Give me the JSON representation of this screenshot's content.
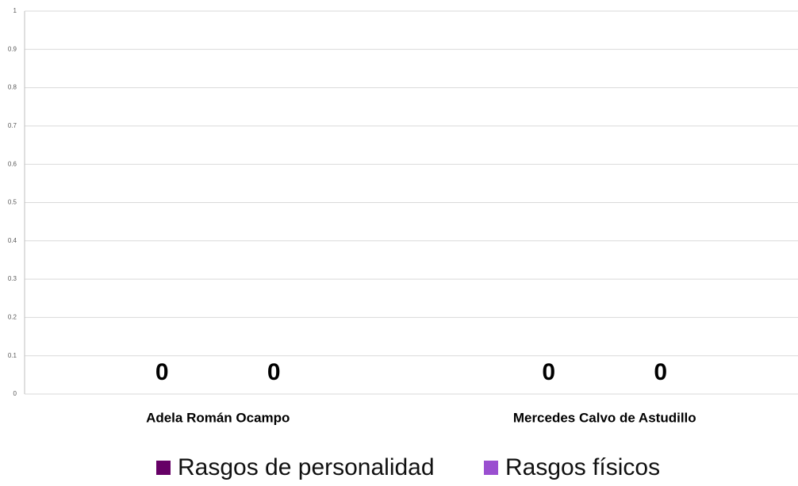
{
  "chart_data": {
    "type": "bar",
    "categories": [
      "Adela Román Ocampo",
      "Mercedes Calvo de Astudillo"
    ],
    "series": [
      {
        "name": "Rasgos de personalidad",
        "color": "#660066",
        "values": [
          0,
          0
        ]
      },
      {
        "name": "Rasgos físicos",
        "color": "#9a4fd0",
        "values": [
          0,
          0
        ]
      }
    ],
    "ylim": [
      0,
      1
    ],
    "yticks": [
      0,
      0.1,
      0.2,
      0.3,
      0.4,
      0.5,
      0.6,
      0.7,
      0.8,
      0.9,
      1
    ],
    "grid": true,
    "data_labels": true,
    "legend": "bottom"
  }
}
